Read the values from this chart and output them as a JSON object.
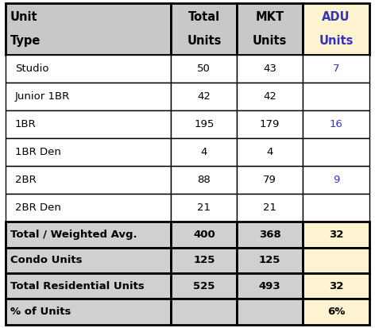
{
  "rows": [
    {
      "label": "Studio",
      "total": "50",
      "mkt": "43",
      "adu": "7",
      "adu_color": "#3333cc"
    },
    {
      "label": "Junior 1BR",
      "total": "42",
      "mkt": "42",
      "adu": "",
      "adu_color": "#3333cc"
    },
    {
      "label": "1BR",
      "total": "195",
      "mkt": "179",
      "adu": "16",
      "adu_color": "#3333cc"
    },
    {
      "label": "1BR Den",
      "total": "4",
      "mkt": "4",
      "adu": "",
      "adu_color": "#3333cc"
    },
    {
      "label": "2BR",
      "total": "88",
      "mkt": "79",
      "adu": "9",
      "adu_color": "#3333cc"
    },
    {
      "label": "2BR Den",
      "total": "21",
      "mkt": "21",
      "adu": "",
      "adu_color": "#3333cc"
    }
  ],
  "summary_rows": [
    {
      "label": "Total / Weighted Avg.",
      "total": "400",
      "mkt": "368",
      "adu": "32"
    },
    {
      "label": "Condo Units",
      "total": "125",
      "mkt": "125",
      "adu": ""
    },
    {
      "label": "Total Residential Units",
      "total": "525",
      "mkt": "493",
      "adu": "32"
    },
    {
      "label": "% of Units",
      "total": "",
      "mkt": "",
      "adu": "6%"
    }
  ],
  "header_bg": "#c8c8c8",
  "data_bg": "#ffffff",
  "summary_bg": "#d0d0d0",
  "adu_highlight_bg": "#fef3d0",
  "border_color": "#000000",
  "text_color_dark": "#000000",
  "text_color_blue": "#3333bb",
  "figsize": [
    4.72,
    4.13
  ],
  "dpi": 100
}
